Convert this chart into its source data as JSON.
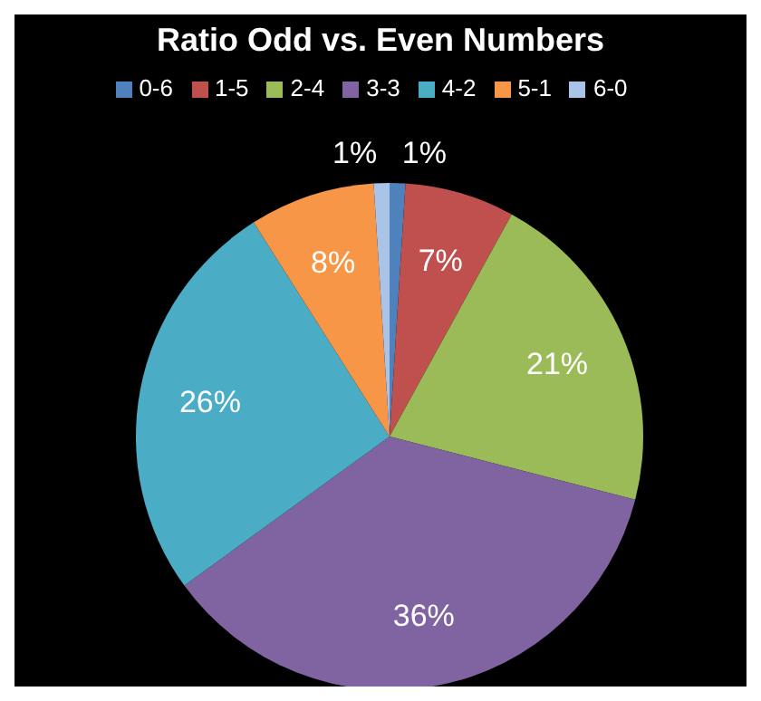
{
  "chart_data": {
    "type": "pie",
    "title": "Ratio Odd vs. Even Numbers",
    "categories": [
      "0-6",
      "1-5",
      "2-4",
      "3-3",
      "4-2",
      "5-1",
      "6-0"
    ],
    "values": [
      1,
      7,
      21,
      36,
      26,
      8,
      1
    ],
    "colors": [
      "#4f81bd",
      "#c0504d",
      "#9bbb59",
      "#8064a2",
      "#4bacc6",
      "#f79646",
      "#a9c4e6"
    ],
    "value_labels": [
      "1%",
      "7%",
      "21%",
      "36%",
      "26%",
      "8%",
      "1%"
    ],
    "legend": "top"
  }
}
